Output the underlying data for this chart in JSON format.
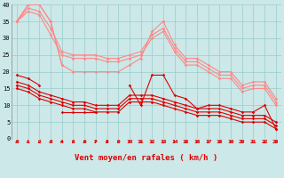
{
  "x": [
    0,
    1,
    2,
    3,
    4,
    5,
    6,
    7,
    8,
    9,
    10,
    11,
    12,
    13,
    14,
    15,
    16,
    17,
    18,
    19,
    20,
    21,
    22,
    23
  ],
  "line_pink1": [
    35,
    40,
    40,
    35,
    22,
    20,
    20,
    20,
    20,
    20,
    22,
    24,
    32,
    35,
    28,
    24,
    24,
    22,
    20,
    20,
    16,
    17,
    17,
    12
  ],
  "line_pink2": [
    35,
    39,
    38,
    33,
    26,
    25,
    25,
    25,
    24,
    24,
    25,
    26,
    31,
    33,
    27,
    23,
    23,
    21,
    19,
    19,
    15,
    16,
    16,
    11
  ],
  "line_pink3": [
    35,
    38,
    37,
    31,
    25,
    24,
    24,
    24,
    23,
    23,
    24,
    25,
    30,
    32,
    26,
    22,
    22,
    20,
    18,
    18,
    14,
    15,
    15,
    10
  ],
  "line_pink_spike": [
    35,
    40,
    40,
    35,
    22,
    null,
    null,
    null,
    null,
    null,
    null,
    null,
    null,
    35,
    null,
    null,
    null,
    null,
    null,
    null,
    null,
    null,
    null,
    null
  ],
  "line_red_main": [
    19,
    18,
    16,
    null,
    8,
    8,
    8,
    8,
    null,
    null,
    16,
    10,
    19,
    19,
    13,
    12,
    9,
    10,
    10,
    9,
    8,
    8,
    10,
    3
  ],
  "line_red1": [
    17,
    16,
    14,
    13,
    12,
    11,
    11,
    10,
    10,
    10,
    13,
    13,
    13,
    12,
    11,
    10,
    9,
    9,
    9,
    8,
    7,
    7,
    7,
    5
  ],
  "line_red2": [
    16,
    15,
    13,
    12,
    11,
    10,
    10,
    9,
    9,
    9,
    12,
    12,
    12,
    11,
    10,
    9,
    8,
    8,
    8,
    7,
    6,
    6,
    6,
    4
  ],
  "line_red3": [
    15,
    14,
    12,
    11,
    10,
    9,
    9,
    8,
    8,
    8,
    11,
    11,
    11,
    10,
    9,
    8,
    7,
    7,
    7,
    6,
    5,
    5,
    5,
    3
  ],
  "arrow_angles": [
    270,
    270,
    270,
    260,
    270,
    255,
    255,
    240,
    235,
    235,
    235,
    235,
    235,
    235,
    235,
    235,
    235,
    235,
    235,
    235,
    235,
    260,
    235,
    235
  ],
  "bg_color": "#cce8e8",
  "grid_color": "#99cccc",
  "dark_red": "#dd0000",
  "light_pink": "#ff8888",
  "xlabel": "Vent moyen/en rafales ( km/h )",
  "ylim": [
    0,
    40
  ],
  "yticks": [
    0,
    5,
    10,
    15,
    20,
    25,
    30,
    35,
    40
  ]
}
